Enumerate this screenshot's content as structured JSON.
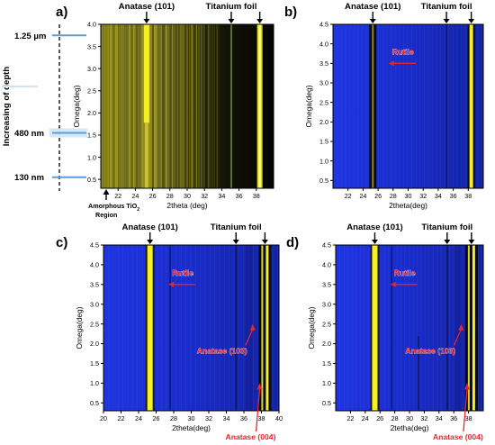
{
  "figure": {
    "depth_axis": {
      "title": "Increasing of depth",
      "marks": [
        "1.25 µm",
        "480 nm",
        "130 nm"
      ]
    },
    "amorphous_label": [
      "Amorphous TiO",
      "2",
      "Region"
    ],
    "colors": {
      "plot_yellow": "#f5ef2a",
      "plot_blue": "#1d2fd6",
      "plot_dark": "#080a18",
      "annotation_red": "#e3262d",
      "depth_line": "#5a9ed8"
    }
  },
  "chart_data": [
    {
      "id": "a",
      "panel_label": "a)",
      "type": "heatmap",
      "xlabel": "2theta (deg)",
      "ylabel": "Omega(deg)",
      "xlim": [
        20,
        40
      ],
      "ylim": [
        0.3,
        4.0
      ],
      "xticks": [
        22,
        24,
        26,
        28,
        30,
        32,
        34,
        36,
        38
      ],
      "yticks": [
        0.5,
        1.0,
        1.5,
        2.0,
        2.5,
        3.0,
        3.5,
        4.0
      ],
      "peaks": [
        {
          "label": "Anatase (101)",
          "x": 25.3
        },
        {
          "label": "Titanium foil",
          "x": 35.1
        },
        {
          "label": "",
          "x": 38.4
        }
      ],
      "annotations": []
    },
    {
      "id": "b",
      "panel_label": "b)",
      "type": "heatmap",
      "xlabel": "2theta(deg)",
      "ylabel": "Omega(deg)",
      "xlim": [
        20,
        40
      ],
      "ylim": [
        0.3,
        4.5
      ],
      "xticks": [
        22,
        24,
        26,
        28,
        30,
        32,
        34,
        36,
        38
      ],
      "yticks": [
        0.5,
        1.0,
        1.5,
        2.0,
        2.5,
        3.0,
        3.5,
        4.0,
        4.5
      ],
      "peaks": [
        {
          "label": "Anatase (101)",
          "x": 25.3
        },
        {
          "label": "Titanium foil",
          "x": 35.1
        },
        {
          "label": "",
          "x": 38.4
        }
      ],
      "annotations": [
        {
          "text": "Rutile",
          "x": 27.4,
          "y": 3.5
        }
      ]
    },
    {
      "id": "c",
      "panel_label": "c)",
      "type": "heatmap",
      "xlabel": "2theta(deg)",
      "ylabel": "Omega(deg)",
      "xlim": [
        20,
        40
      ],
      "ylim": [
        0.3,
        4.5
      ],
      "xticks": [
        20,
        22,
        24,
        26,
        28,
        30,
        32,
        34,
        36,
        38,
        40
      ],
      "yticks": [
        0.5,
        1.0,
        1.5,
        2.0,
        2.5,
        3.0,
        3.5,
        4.0,
        4.5
      ],
      "peaks": [
        {
          "label": "Anatase (101)",
          "x": 25.3
        },
        {
          "label": "Titanium foil",
          "x": 35.1
        },
        {
          "label": "",
          "x": 38.4
        }
      ],
      "annotations": [
        {
          "text": "Rutile",
          "x": 27.4,
          "y": 3.5
        },
        {
          "text": "Anatase (103)",
          "x": 37.0,
          "y": 2.5
        },
        {
          "text": "Anatase (004)",
          "x": 37.8,
          "y": 1.0
        }
      ]
    },
    {
      "id": "d",
      "panel_label": "d)",
      "type": "heatmap",
      "xlabel": "2tetha(deg)",
      "ylabel": "Omega(deg)",
      "xlim": [
        20,
        40
      ],
      "ylim": [
        0.3,
        4.5
      ],
      "xticks": [
        22,
        24,
        26,
        28,
        30,
        32,
        34,
        36,
        38
      ],
      "yticks": [
        0.5,
        1.0,
        1.5,
        2.0,
        2.5,
        3.0,
        3.5,
        4.0,
        4.5
      ],
      "peaks": [
        {
          "label": "Anatase (101)",
          "x": 25.3
        },
        {
          "label": "Titanium foil",
          "x": 35.1
        },
        {
          "label": "",
          "x": 38.4
        }
      ],
      "annotations": [
        {
          "text": "Rutile",
          "x": 27.4,
          "y": 3.5
        },
        {
          "text": "Anatase (103)",
          "x": 37.0,
          "y": 2.5
        },
        {
          "text": "Anatase (004)",
          "x": 37.8,
          "y": 1.0
        }
      ]
    }
  ]
}
